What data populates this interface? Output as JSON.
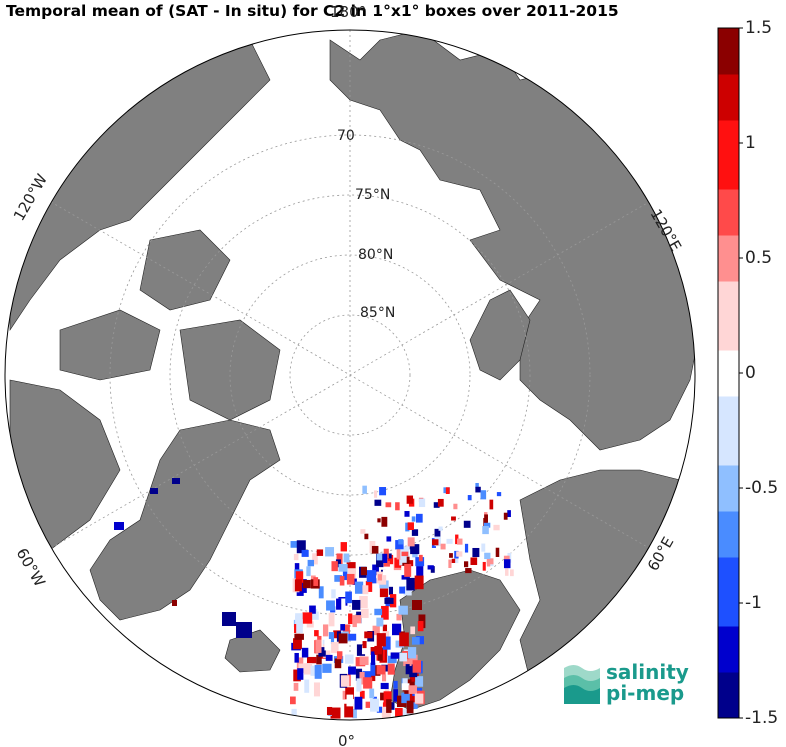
{
  "title": "Temporal mean of (SAT - In situ) for C2 in 1°x1° boxes over 2011-2015",
  "colorbar": {
    "min": -1.5,
    "max": 1.5,
    "tick_labels": [
      "1.5",
      "1",
      "0.5",
      "0",
      "-0.5",
      "-1",
      "-1.5"
    ],
    "tick_values": [
      1.5,
      1,
      0.5,
      0,
      -0.5,
      -1,
      -1.5
    ],
    "colors_low_to_high": [
      "#00008b",
      "#0000cd",
      "#1e50ff",
      "#4a8cff",
      "#8fbfff",
      "#d6e6ff",
      "#ffffff",
      "#ffd6d6",
      "#ff8f8f",
      "#ff4a4a",
      "#ff1010",
      "#cd0000",
      "#8b0000"
    ]
  },
  "map": {
    "projection": "north-polar-stereographic",
    "land_color": "#808080",
    "ocean_color": "#ffffff",
    "parallel_labels": [
      "70",
      "75°N",
      "80°N",
      "85°N"
    ],
    "meridian_labels": {
      "top": "180°",
      "bottom": "0°",
      "left_upper": "120°W",
      "left_lower": "60°W",
      "right_upper": "120°E",
      "right_lower": "60°E"
    }
  },
  "logo": {
    "line1": "salinity",
    "line2": "pi-mep",
    "color": "#1a9a8c"
  }
}
